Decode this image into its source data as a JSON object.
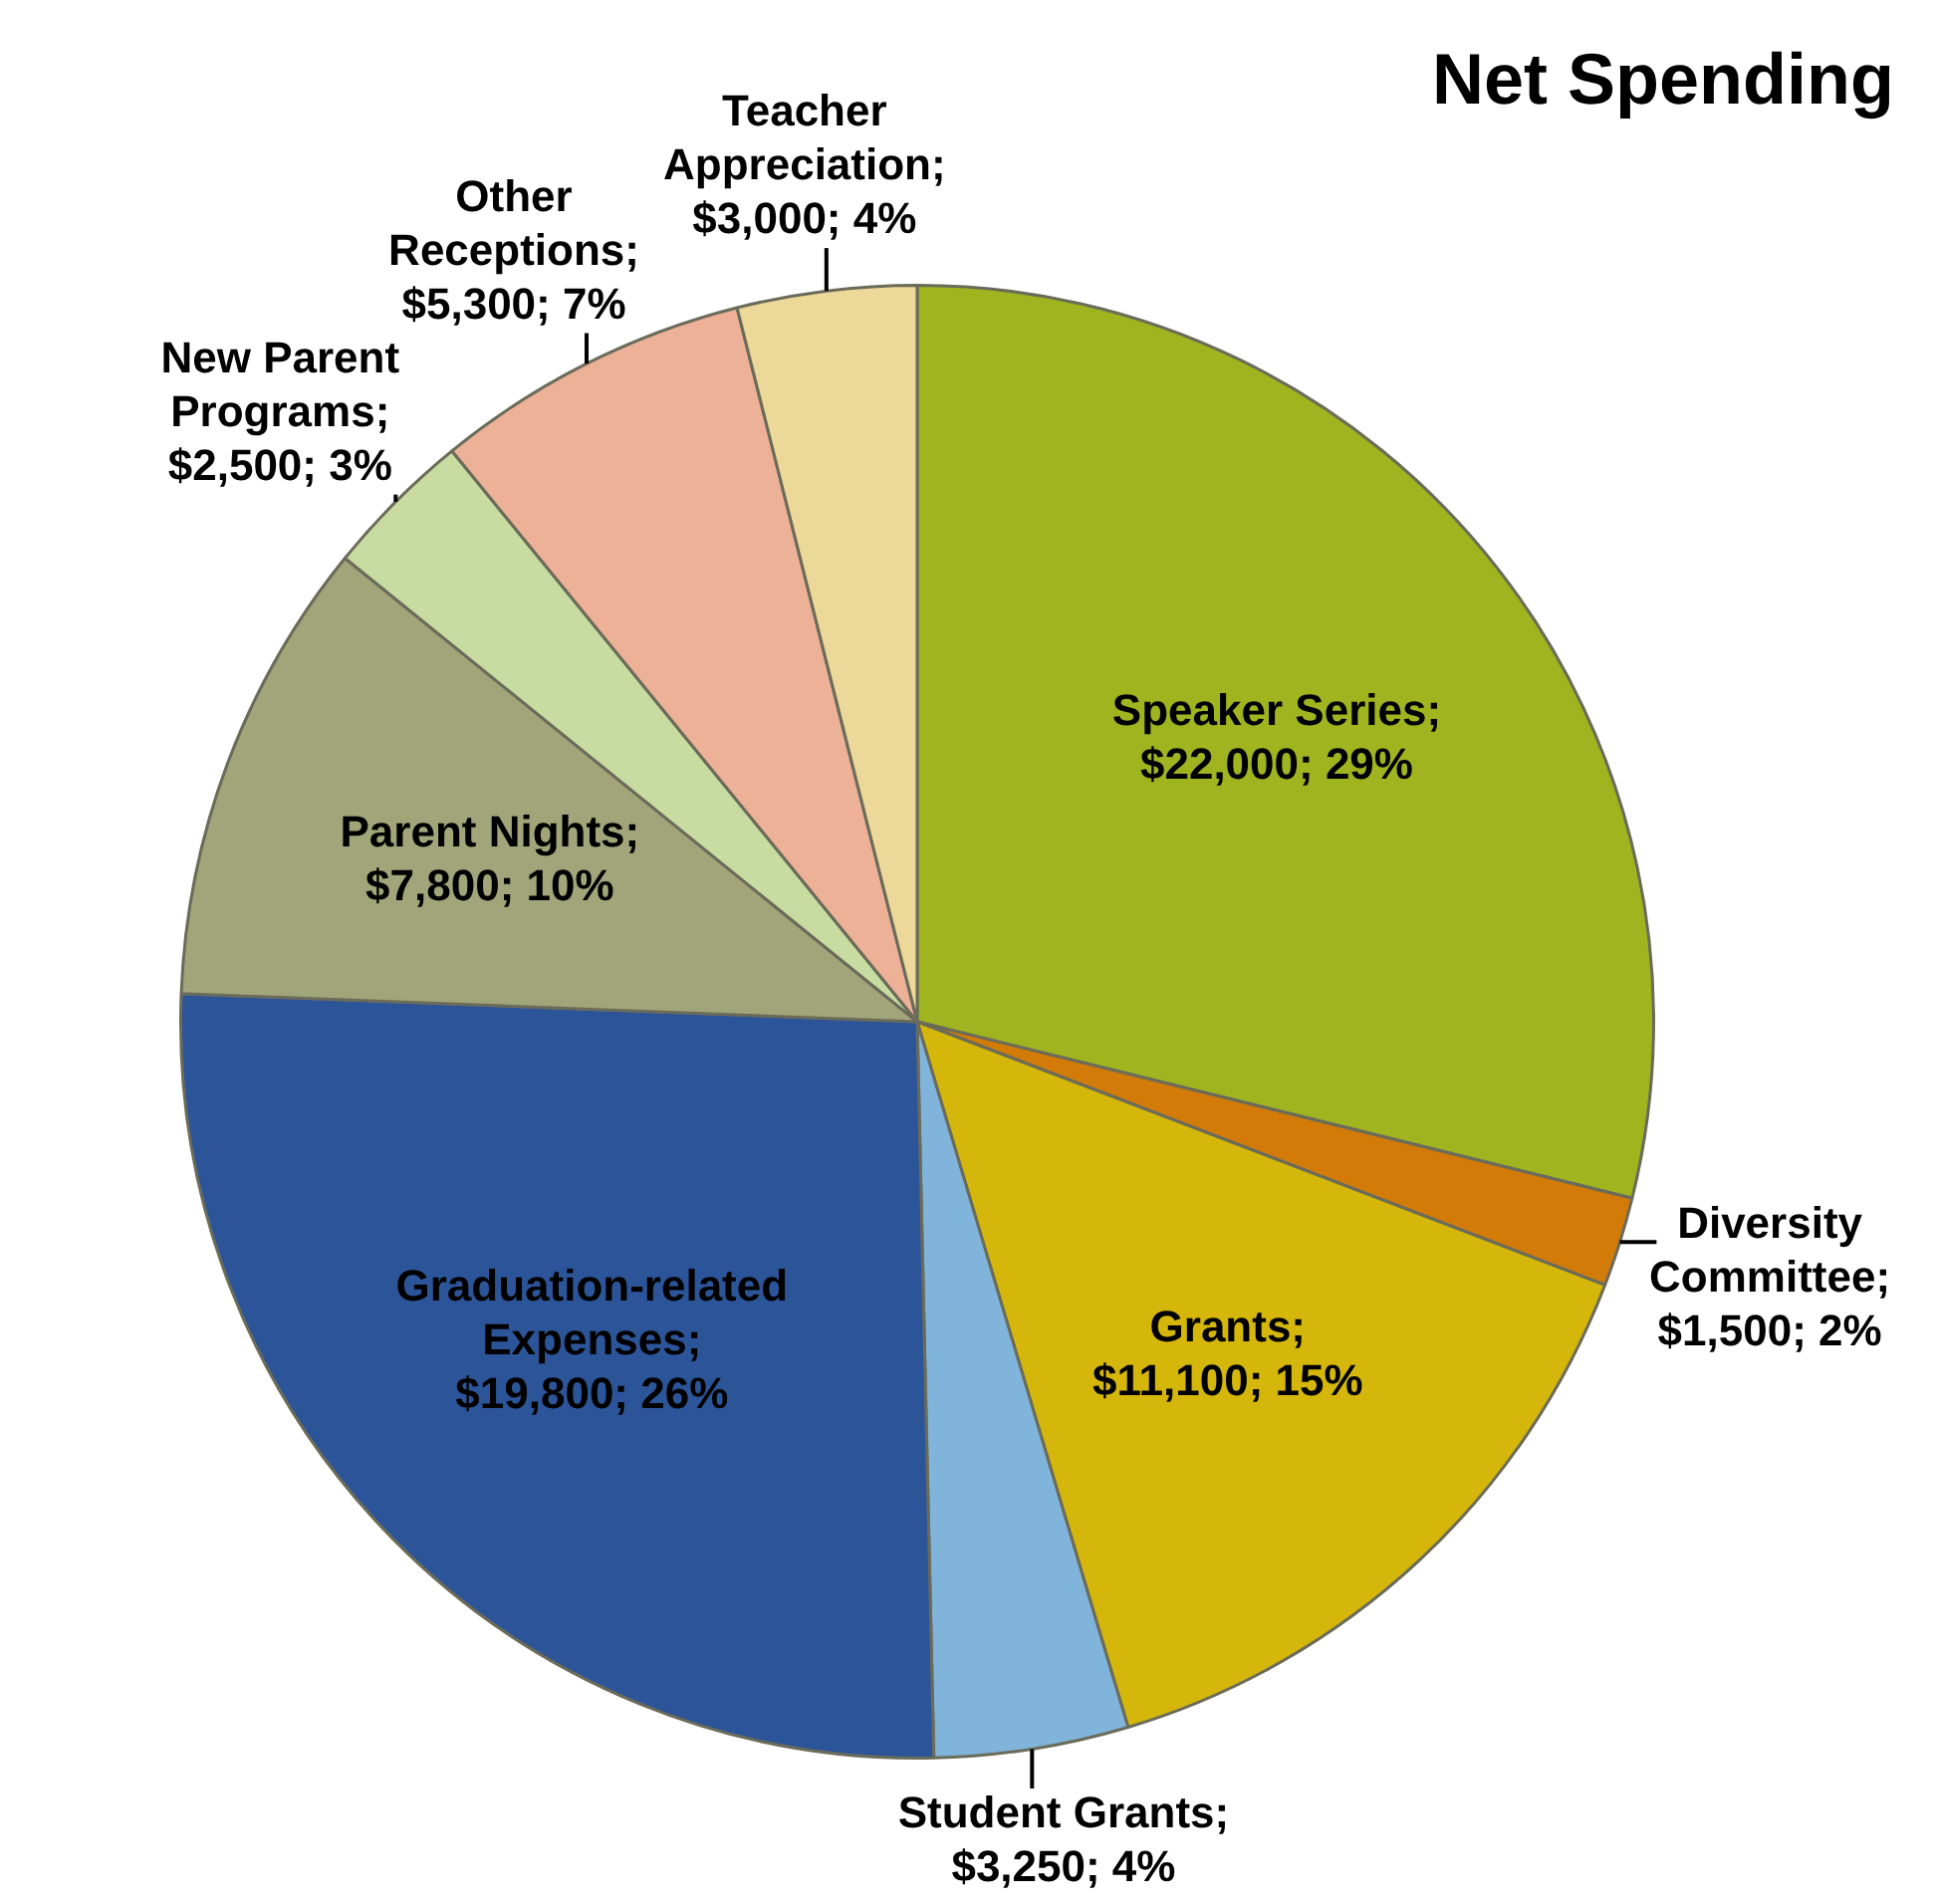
{
  "chart_data": {
    "type": "pie",
    "title": "Net Spending",
    "categories": [
      "Speaker Series",
      "Diversity Committee",
      "Grants",
      "Student Grants",
      "Graduation-related Expenses",
      "Parent Nights",
      "New Parent Programs",
      "Other Receptions",
      "Teacher Appreciation"
    ],
    "values": [
      22000,
      1500,
      11100,
      3250,
      19800,
      7800,
      2500,
      5300,
      3000
    ],
    "colors": [
      "#9fb41f",
      "#d27b08",
      "#d4b70a",
      "#80b4da",
      "#2c5599",
      "#a1a579",
      "#c8dba1",
      "#edb198",
      "#ecd898"
    ],
    "value_labels": [
      "; $22,000; 29%",
      "; $1,500; 2%",
      "; $11,100; 15%",
      "; $3,250; 4%",
      "; $19,800; 26%",
      "; $7,800; 10%",
      "; $2,500; 3%",
      "; $5,300; 7%",
      "; $3,000; 4%"
    ]
  }
}
